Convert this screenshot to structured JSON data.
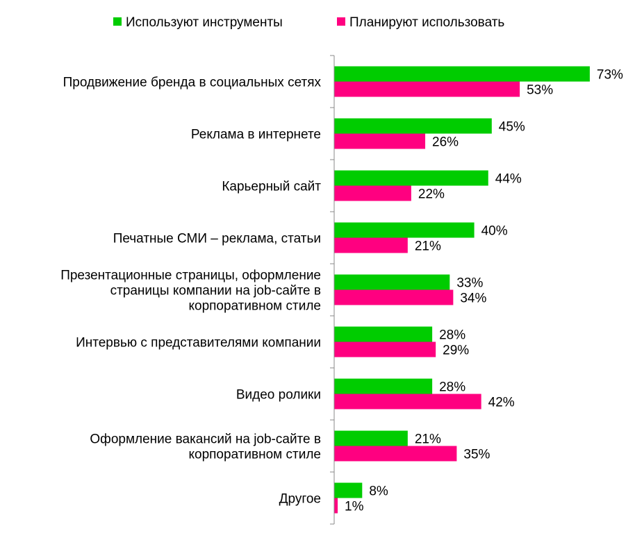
{
  "chart_data": {
    "type": "bar",
    "orientation": "horizontal",
    "categories": [
      "Продвижение бренда в социальных сетях",
      "Реклама в интернете",
      "Карьерный сайт",
      "Печатные СМИ – реклама, статьи",
      "Презентационные страницы, оформление страницы компании на job-сайте в корпоративном стиле",
      "Интервью с представителями компании",
      "Видео ролики",
      "Оформление вакансий на job-сайте в корпоративном стиле",
      "Другое"
    ],
    "category_lines": [
      [
        "Продвижение бренда в социальных сетях"
      ],
      [
        "Реклама в интернете"
      ],
      [
        "Карьерный сайт"
      ],
      [
        "Печатные СМИ – реклама, статьи"
      ],
      [
        "Презентационные страницы, оформление",
        "страницы компании на job-сайте в",
        "корпоративном стиле"
      ],
      [
        "Интервью с представителями компании"
      ],
      [
        "Видео ролики"
      ],
      [
        "Оформление вакансий на job-сайте в",
        "корпоративном стиле"
      ],
      [
        "Другое"
      ]
    ],
    "series": [
      {
        "name": "Используют инструменты",
        "color": "#00CC00",
        "values": [
          73,
          45,
          44,
          40,
          33,
          28,
          28,
          21,
          8
        ],
        "labels": [
          "73%",
          "45%",
          "44%",
          "40%",
          "33%",
          "28%",
          "28%",
          "21%",
          "8%"
        ]
      },
      {
        "name": "Планируют использовать",
        "color": "#FF0080",
        "values": [
          53,
          26,
          22,
          21,
          34,
          29,
          42,
          35,
          1
        ],
        "labels": [
          "53%",
          "26%",
          "22%",
          "21%",
          "34%",
          "29%",
          "42%",
          "35%",
          "1%"
        ]
      }
    ],
    "xlim": [
      0,
      100
    ],
    "grid": false,
    "legend_position": "top"
  }
}
